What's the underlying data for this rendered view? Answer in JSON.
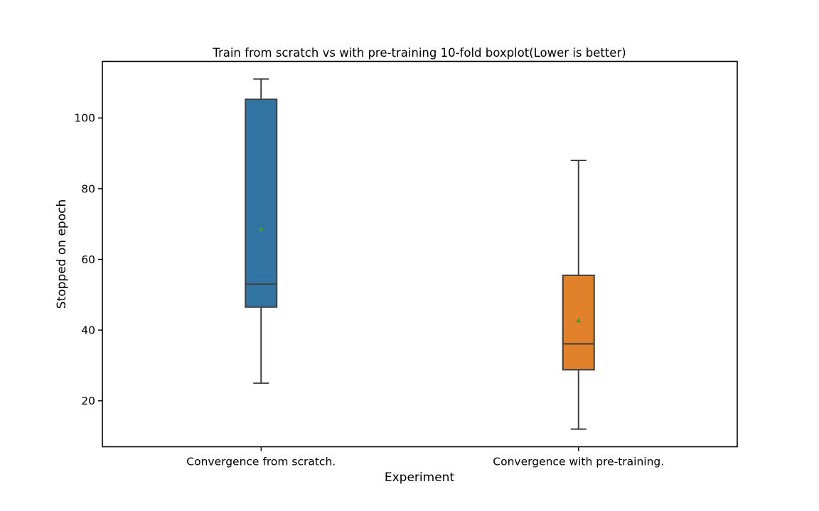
{
  "chart_data": {
    "type": "boxplot",
    "title": "Train from scratch vs with pre-training 10-fold boxplot(Lower is better)",
    "xlabel": "Experiment",
    "ylabel": "Stopped on epoch",
    "ylim": [
      7,
      116
    ],
    "yticks": [
      20,
      40,
      60,
      80,
      100
    ],
    "categories": [
      "Convergence from scratch.",
      "Convergence with pre-training."
    ],
    "boxes": [
      {
        "whisker_low": 25,
        "q1": 46.5,
        "median": 53,
        "q3": 105.3,
        "whisker_high": 111,
        "mean": 68.6,
        "color": "#3274a1"
      },
      {
        "whisker_low": 12,
        "q1": 28.8,
        "median": 36.1,
        "q3": 55.5,
        "whisker_high": 88,
        "mean": 42.7,
        "color": "#e1812c"
      }
    ],
    "mean_marker_color": "#3ca02c",
    "line_color": "#3f3f3f",
    "grid": false,
    "legend": "none"
  }
}
